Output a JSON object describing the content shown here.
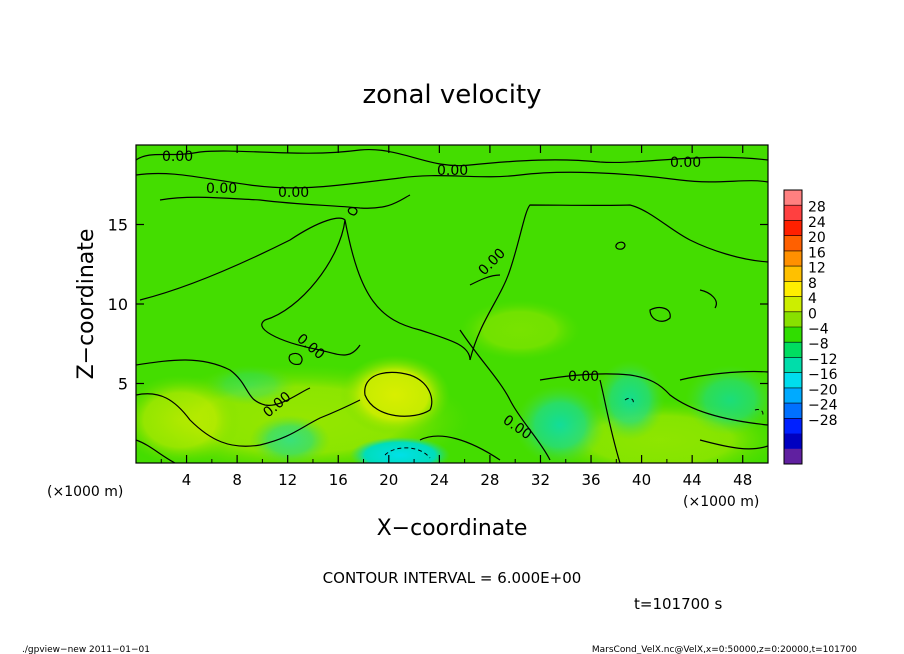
{
  "chart_data": {
    "type": "heatmap",
    "title": "zonal velocity",
    "xlabel": "X−coordinate",
    "ylabel": "Z−coordinate",
    "x_unit": "(×1000 m)",
    "y_unit": "(×1000 m)",
    "xlim": [
      0,
      50
    ],
    "ylim": [
      0,
      20
    ],
    "x_ticks": [
      4,
      8,
      12,
      16,
      20,
      24,
      28,
      32,
      36,
      40,
      44,
      48
    ],
    "y_ticks": [
      5,
      10,
      15
    ],
    "contour_interval": "CONTOUR INTERVAL = 6.000E+00",
    "time_label": "t=101700 s",
    "contour_labels": [
      "0.00",
      "0.00",
      "0.00",
      "0.00",
      "0.00",
      "0.00",
      "0.00",
      "0.00",
      "0.00",
      "0.00"
    ],
    "colorbar": {
      "labels": [
        "28",
        "24",
        "20",
        "16",
        "12",
        "8",
        "4",
        "0",
        "−4",
        "−8",
        "−12",
        "−16",
        "−20",
        "−24",
        "−28"
      ],
      "colors": [
        "#ff8080",
        "#ff4040",
        "#ff2000",
        "#ff6000",
        "#ff9000",
        "#ffc000",
        "#ffee00",
        "#ccee00",
        "#88e000",
        "#30dd00",
        "#00dd60",
        "#00ddaa",
        "#00ddee",
        "#00aaff",
        "#0070ff",
        "#0020ff",
        "#0000c0",
        "#6020a0"
      ]
    }
  },
  "footer": {
    "left": "./gpview−new  2011−01−01",
    "right": "MarsCond_VelX.nc@VelX,x=0:50000,z=0:20000,t=101700"
  }
}
